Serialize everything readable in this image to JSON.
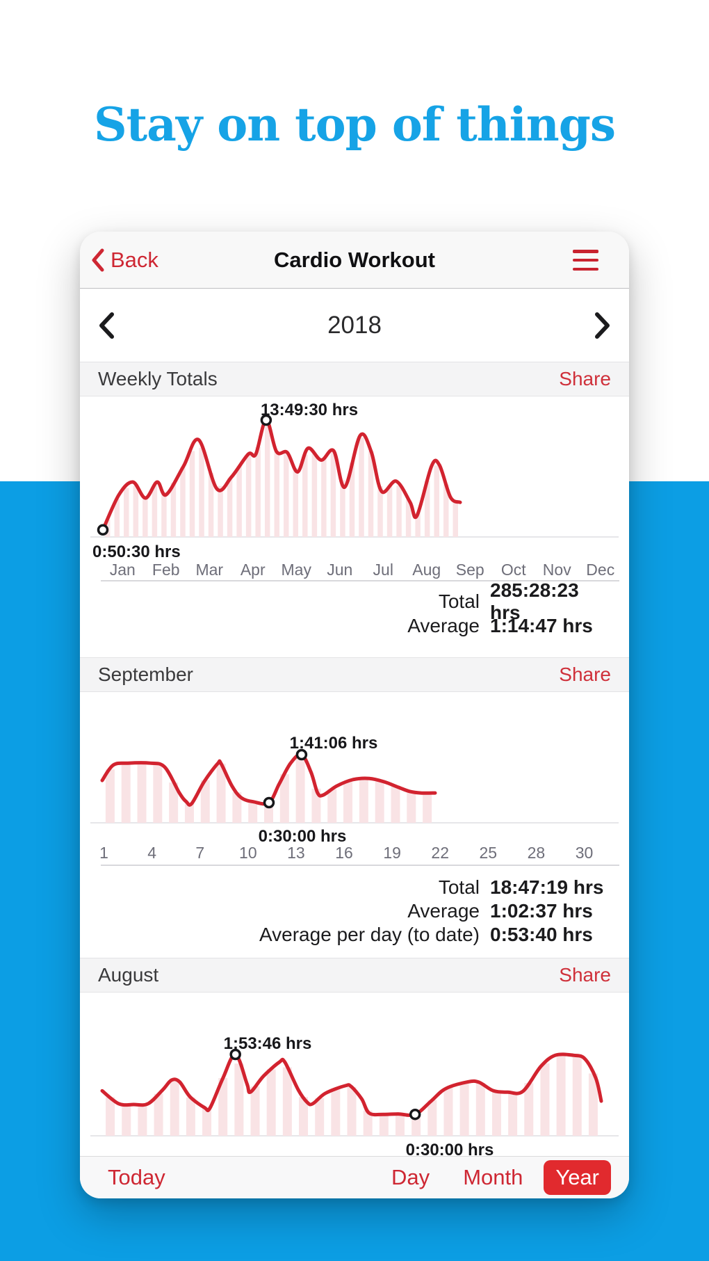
{
  "page": {
    "hero_title": "Stay on top of things"
  },
  "colors": {
    "title_blue": "#16A3E6",
    "page_bg_blue": "#0C9EE4",
    "accent_red": "#CE2733",
    "chart_line_red": "#D2232F",
    "bar_pink": "#F9E3E5",
    "selected_pill_red": "#E12A2E",
    "baseline_gray": "#E6E6E9"
  },
  "navbar": {
    "back_label": "Back",
    "title": "Cardio Workout",
    "menu_icon": "hamburger-menu-icon"
  },
  "year_nav": {
    "year": "2018",
    "prev_icon": "chevron-left-icon",
    "next_icon": "chevron-right-icon"
  },
  "sections": {
    "weekly": {
      "title": "Weekly Totals",
      "share_label": "Share",
      "stats": [
        {
          "label": "Total",
          "value": "285:28:23 hrs"
        },
        {
          "label": "Average",
          "value": "1:14:47 hrs"
        }
      ]
    },
    "september": {
      "title": "September",
      "share_label": "Share",
      "stats": [
        {
          "label": "Total",
          "value": "18:47:19 hrs"
        },
        {
          "label": "Average",
          "value": "1:02:37 hrs"
        },
        {
          "label": "Average per day (to date)",
          "value": "0:53:40 hrs"
        }
      ]
    },
    "august": {
      "title": "August",
      "share_label": "Share"
    }
  },
  "toolbar": {
    "today": "Today",
    "day": "Day",
    "month": "Month",
    "year": "Year",
    "selected": "Year"
  },
  "chart_data": [
    {
      "id": "weekly-totals-2018",
      "type": "line",
      "title": "Weekly Totals",
      "unit": "hours",
      "x_labels": [
        "Jan",
        "Feb",
        "Mar",
        "Apr",
        "May",
        "Jun",
        "Jul",
        "Aug",
        "Sep",
        "Oct",
        "Nov",
        "Dec"
      ],
      "x_domain_note": "weeks of 2018; data runs Jan through late Sep",
      "y_max": 13.83,
      "max_annotation": "13:49:30 hrs",
      "min_annotation": "0:50:30 hrs",
      "max_index": 12,
      "min_index": 0,
      "bar_count": 38,
      "points": [
        [
          0,
          0.84
        ],
        [
          0.045,
          5.0
        ],
        [
          0.084,
          6.5
        ],
        [
          0.119,
          4.6
        ],
        [
          0.152,
          6.5
        ],
        [
          0.177,
          5.0
        ],
        [
          0.226,
          8.4
        ],
        [
          0.268,
          11.5
        ],
        [
          0.319,
          5.7
        ],
        [
          0.36,
          7.1
        ],
        [
          0.407,
          9.8
        ],
        [
          0.428,
          9.8
        ],
        [
          0.457,
          13.83
        ],
        [
          0.486,
          10.1
        ],
        [
          0.516,
          10.0
        ],
        [
          0.545,
          7.7
        ],
        [
          0.574,
          10.5
        ],
        [
          0.611,
          9.1
        ],
        [
          0.646,
          10.2
        ],
        [
          0.677,
          5.9
        ],
        [
          0.72,
          12.0
        ],
        [
          0.751,
          10.1
        ],
        [
          0.78,
          5.4
        ],
        [
          0.821,
          6.6
        ],
        [
          0.86,
          4.1
        ],
        [
          0.879,
          2.5
        ],
        [
          0.92,
          8.4
        ],
        [
          0.942,
          8.5
        ],
        [
          0.973,
          4.7
        ],
        [
          1,
          4.1
        ]
      ],
      "total": "285:28:23 hrs",
      "average": "1:14:47 hrs"
    },
    {
      "id": "september-2018-daily",
      "type": "line",
      "title": "September",
      "unit": "hours",
      "x_labels": [
        "1",
        "4",
        "7",
        "10",
        "13",
        "16",
        "19",
        "22",
        "25",
        "28",
        "30"
      ],
      "x_domain_note": "days of September; data runs day 1 to ~21",
      "y_max": 1.69,
      "max_annotation": "1:41:06 hrs",
      "min_annotation": "0:30:00 hrs",
      "max_index": 17,
      "min_index": 14,
      "bar_count": 21,
      "points": [
        [
          0,
          1.05
        ],
        [
          0.033,
          1.43
        ],
        [
          0.077,
          1.48
        ],
        [
          0.144,
          1.48
        ],
        [
          0.188,
          1.38
        ],
        [
          0.232,
          0.74
        ],
        [
          0.253,
          0.52
        ],
        [
          0.269,
          0.48
        ],
        [
          0.307,
          1.03
        ],
        [
          0.347,
          1.47
        ],
        [
          0.357,
          1.47
        ],
        [
          0.39,
          0.91
        ],
        [
          0.418,
          0.62
        ],
        [
          0.455,
          0.52
        ],
        [
          0.501,
          0.5
        ],
        [
          0.532,
          0.97
        ],
        [
          0.566,
          1.48
        ],
        [
          0.599,
          1.69
        ],
        [
          0.627,
          1.26
        ],
        [
          0.647,
          0.74
        ],
        [
          0.664,
          0.69
        ],
        [
          0.704,
          0.91
        ],
        [
          0.752,
          1.07
        ],
        [
          0.802,
          1.1
        ],
        [
          0.846,
          1.02
        ],
        [
          0.89,
          0.88
        ],
        [
          0.923,
          0.78
        ],
        [
          0.957,
          0.74
        ],
        [
          1,
          0.74
        ]
      ],
      "total": "18:47:19 hrs",
      "average": "1:02:37 hrs",
      "average_per_day_to_date": "0:53:40 hrs"
    },
    {
      "id": "august-2018-daily",
      "type": "line",
      "title": "August",
      "unit": "hours",
      "x_labels": [],
      "x_domain_note": "days of August, full month (axis labels cut off by toolbar)",
      "y_max": 1.9,
      "max_annotation": "1:53:46 hrs",
      "min_annotation": "0:30:00 hrs",
      "max_index": 11,
      "min_index": 27,
      "bar_count": 31,
      "points": [
        [
          0,
          1.05
        ],
        [
          0.033,
          0.75
        ],
        [
          0.063,
          0.73
        ],
        [
          0.092,
          0.75
        ],
        [
          0.121,
          1.07
        ],
        [
          0.139,
          1.3
        ],
        [
          0.155,
          1.26
        ],
        [
          0.176,
          0.91
        ],
        [
          0.205,
          0.66
        ],
        [
          0.216,
          0.65
        ],
        [
          0.242,
          1.35
        ],
        [
          0.267,
          1.9
        ],
        [
          0.29,
          1.22
        ],
        [
          0.297,
          1.02
        ],
        [
          0.323,
          1.39
        ],
        [
          0.355,
          1.72
        ],
        [
          0.366,
          1.72
        ],
        [
          0.393,
          1.07
        ],
        [
          0.411,
          0.78
        ],
        [
          0.422,
          0.75
        ],
        [
          0.447,
          0.99
        ],
        [
          0.487,
          1.17
        ],
        [
          0.499,
          1.15
        ],
        [
          0.52,
          0.86
        ],
        [
          0.535,
          0.53
        ],
        [
          0.564,
          0.5
        ],
        [
          0.593,
          0.51
        ],
        [
          0.627,
          0.5
        ],
        [
          0.659,
          0.81
        ],
        [
          0.688,
          1.1
        ],
        [
          0.733,
          1.26
        ],
        [
          0.755,
          1.25
        ],
        [
          0.784,
          1.05
        ],
        [
          0.813,
          1.02
        ],
        [
          0.843,
          1.04
        ],
        [
          0.879,
          1.62
        ],
        [
          0.908,
          1.88
        ],
        [
          0.944,
          1.88
        ],
        [
          0.967,
          1.8
        ],
        [
          0.989,
          1.35
        ],
        [
          1,
          0.81
        ]
      ]
    }
  ]
}
